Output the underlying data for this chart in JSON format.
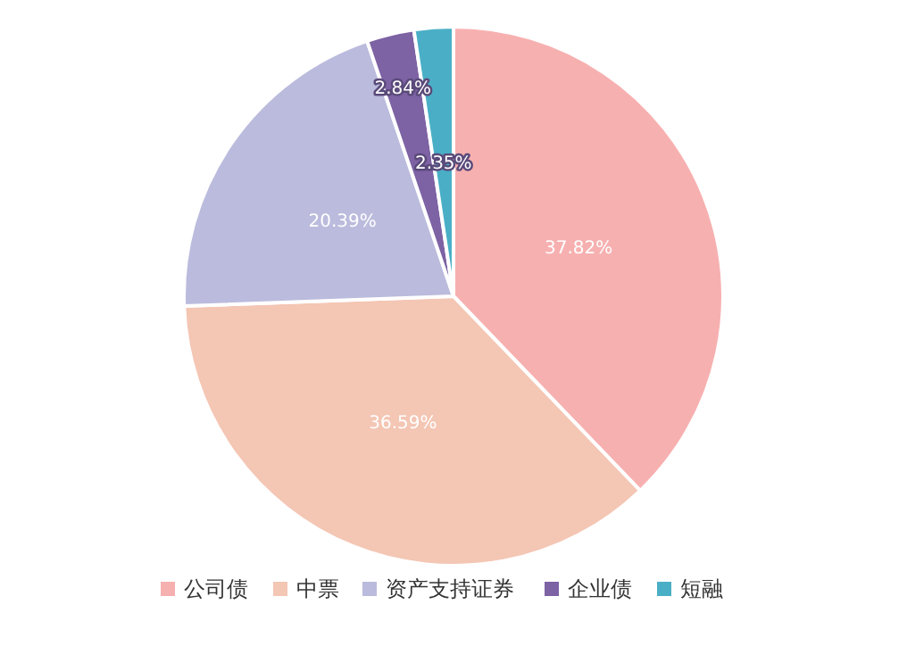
{
  "chart_data": {
    "type": "pie",
    "categories": [
      "公司债",
      "中票",
      "资产支持证券",
      "企业债",
      "短融"
    ],
    "values": [
      37.82,
      36.59,
      20.39,
      2.84,
      2.35
    ],
    "colors": [
      "#f7b0b0",
      "#f4c6b4",
      "#bbbbdd",
      "#7d62a4",
      "#4aafc6"
    ],
    "value_labels": [
      "37.82%",
      "36.59%",
      "20.39%",
      "2.84%",
      "2.35%"
    ],
    "legend": "bottom"
  }
}
